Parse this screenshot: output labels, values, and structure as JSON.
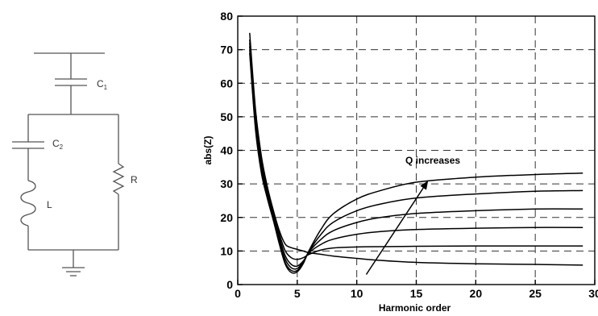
{
  "circuit": {
    "c1_label": "C",
    "c1_sub": "1",
    "c2_label": "C",
    "c2_sub": "2",
    "l_label": "L",
    "r_label": "R"
  },
  "chart_data": {
    "type": "line",
    "xlabel": "Harmonic order",
    "ylabel": "abs(Z)",
    "xlim": [
      0,
      30
    ],
    "ylim": [
      0,
      80
    ],
    "xticks": [
      0,
      5,
      10,
      15,
      20,
      25,
      30
    ],
    "xtick_labels": [
      "0",
      "5",
      "10",
      "15",
      "20",
      "25",
      "30"
    ],
    "yticks": [
      0,
      10,
      20,
      30,
      40,
      50,
      60,
      70,
      80
    ],
    "ytick_labels": [
      "0",
      "10",
      "20",
      "30",
      "40",
      "50",
      "60",
      "70",
      "80"
    ],
    "grid": true,
    "annotation": {
      "text": "Q increases",
      "arrow_from": [
        10.8,
        3
      ],
      "arrow_to": [
        16,
        31
      ]
    },
    "series": [
      {
        "x": [
          1,
          1.5,
          2,
          2.5,
          3,
          3.5,
          4,
          4.5,
          5,
          5.5,
          6,
          7,
          8,
          10,
          12,
          15,
          20,
          25,
          29
        ],
        "y": [
          75,
          52,
          38,
          29,
          22,
          16,
          12,
          11,
          10.5,
          10,
          9.5,
          9,
          8.5,
          7.8,
          7.2,
          6.6,
          6.2,
          6,
          5.8
        ]
      },
      {
        "x": [
          1,
          1.5,
          2,
          2.5,
          3,
          3.5,
          4,
          4.5,
          5,
          5.5,
          6,
          7,
          8,
          10,
          12,
          15,
          20,
          25,
          29
        ],
        "y": [
          73,
          50,
          37,
          28,
          21,
          15,
          10,
          8,
          7.5,
          8,
          9,
          10.3,
          10.9,
          11.2,
          11.3,
          11.4,
          11.5,
          11.5,
          11.5
        ]
      },
      {
        "x": [
          1,
          1.5,
          2,
          2.5,
          3,
          3.5,
          4,
          4.5,
          5,
          5.5,
          6,
          7,
          8,
          10,
          12,
          15,
          20,
          25,
          29
        ],
        "y": [
          72,
          49,
          36,
          27,
          20.5,
          14,
          8.5,
          6,
          5.5,
          7,
          9.5,
          12,
          13.5,
          15,
          15.8,
          16.4,
          16.8,
          17,
          17
        ]
      },
      {
        "x": [
          1,
          1.5,
          2,
          2.5,
          3,
          3.5,
          4,
          4.5,
          5,
          5.5,
          6,
          7,
          8,
          10,
          12,
          15,
          20,
          25,
          29
        ],
        "y": [
          71,
          48,
          35,
          26.5,
          20,
          13,
          7.5,
          5,
          4.8,
          6.8,
          9.8,
          13.5,
          16,
          18.5,
          20,
          21.2,
          22,
          22.5,
          22.5
        ]
      },
      {
        "x": [
          1,
          1.5,
          2,
          2.5,
          3,
          3.5,
          4,
          4.5,
          5,
          5.5,
          6,
          7,
          8,
          10,
          12,
          15,
          20,
          25,
          29
        ],
        "y": [
          70,
          47,
          34,
          26,
          19.5,
          12.5,
          6.5,
          4.2,
          4.2,
          6.5,
          10,
          15,
          18.5,
          22,
          24,
          25.8,
          27,
          27.8,
          28
        ]
      },
      {
        "x": [
          1,
          1.5,
          2,
          2.5,
          3,
          3.5,
          4,
          4.5,
          5,
          5.5,
          6,
          7,
          8,
          10,
          12,
          15,
          20,
          25,
          29
        ],
        "y": [
          69,
          46,
          33,
          25.5,
          19,
          12,
          6,
          3.6,
          3.8,
          6.2,
          10.2,
          16.5,
          21,
          25.5,
          28,
          30.5,
          32,
          32.8,
          33.2
        ]
      }
    ]
  }
}
